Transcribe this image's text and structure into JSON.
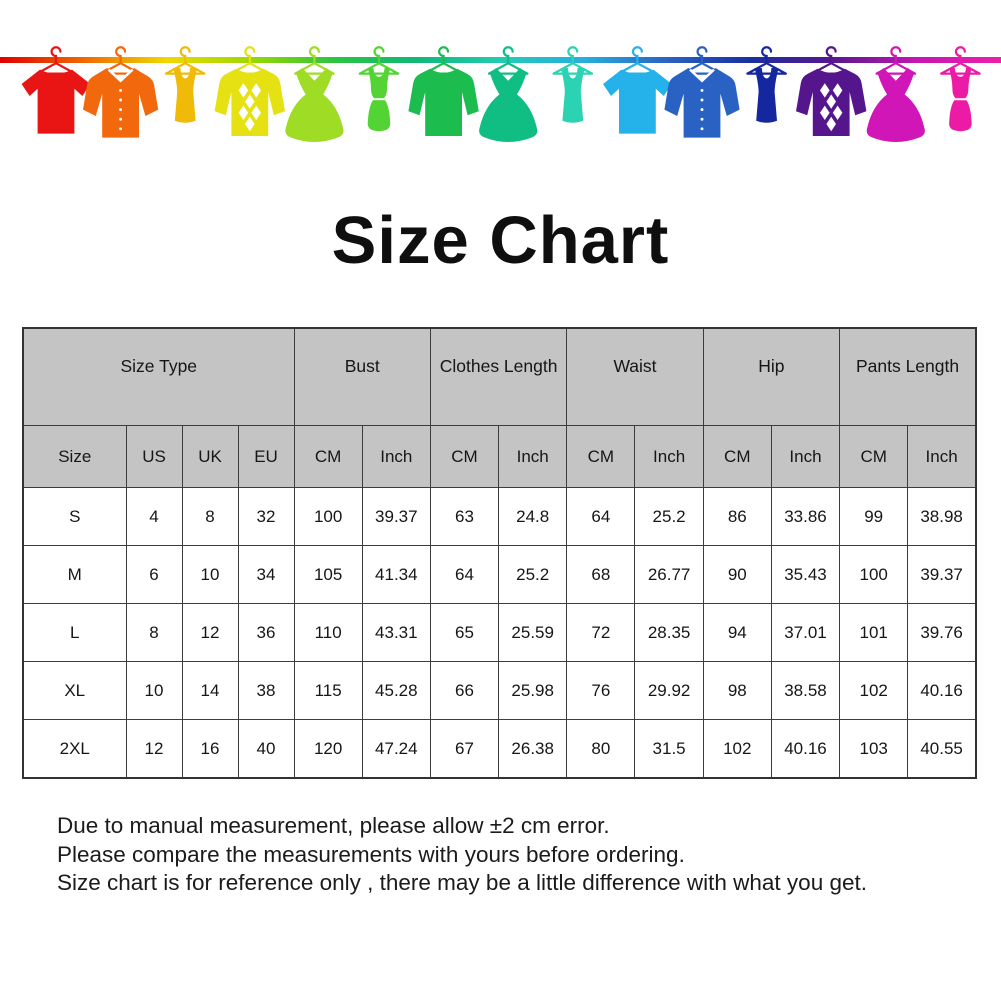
{
  "title": "Size Chart",
  "banner": {
    "line_gradient": [
      "#e00000",
      "#f06800",
      "#f0d800",
      "#9cd800",
      "#2cc440",
      "#10b878",
      "#22ccb4",
      "#28aede",
      "#2a62c4",
      "#1a2fa0",
      "#5a1692",
      "#c516b4",
      "#ee20a8"
    ],
    "items": [
      {
        "icon": "tshirt-icon",
        "color": "#e91414"
      },
      {
        "icon": "shirt-icon",
        "color": "#f2680d"
      },
      {
        "icon": "tank-top-icon",
        "color": "#f0bb08"
      },
      {
        "icon": "argyle-sweater-icon",
        "color": "#e6e112"
      },
      {
        "icon": "dress-icon",
        "color": "#9edc26"
      },
      {
        "icon": "cami-dress-icon",
        "color": "#54d434"
      },
      {
        "icon": "sweater-icon",
        "color": "#1cbd4e"
      },
      {
        "icon": "dress-icon",
        "color": "#10bd82"
      },
      {
        "icon": "tank-top-icon",
        "color": "#2bd3b2"
      },
      {
        "icon": "tshirt-icon",
        "color": "#25b2ea"
      },
      {
        "icon": "shirt-icon",
        "color": "#2a62c4"
      },
      {
        "icon": "tank-top-icon",
        "color": "#15279e"
      },
      {
        "icon": "argyle-sweater-icon",
        "color": "#55158d"
      },
      {
        "icon": "dress-icon",
        "color": "#d016b6"
      },
      {
        "icon": "cami-dress-icon",
        "color": "#ec1ba6"
      }
    ]
  },
  "size_table": {
    "header_background": "#c4c4c4",
    "border_color": "#3c3c3c",
    "column_groups": [
      {
        "label": "Size Type",
        "span": 4
      },
      {
        "label": "Bust",
        "span": 2
      },
      {
        "label": "Clothes Length",
        "span": 2
      },
      {
        "label": "Waist",
        "span": 2
      },
      {
        "label": "Hip",
        "span": 2
      },
      {
        "label": "Pants Length",
        "span": 2
      }
    ],
    "sub_columns": [
      "Size",
      "US",
      "UK",
      "EU",
      "CM",
      "Inch",
      "CM",
      "Inch",
      "CM",
      "Inch",
      "CM",
      "Inch",
      "CM",
      "Inch"
    ],
    "rows": [
      [
        "S",
        "4",
        "8",
        "32",
        "100",
        "39.37",
        "63",
        "24.8",
        "64",
        "25.2",
        "86",
        "33.86",
        "99",
        "38.98"
      ],
      [
        "M",
        "6",
        "10",
        "34",
        "105",
        "41.34",
        "64",
        "25.2",
        "68",
        "26.77",
        "90",
        "35.43",
        "100",
        "39.37"
      ],
      [
        "L",
        "8",
        "12",
        "36",
        "110",
        "43.31",
        "65",
        "25.59",
        "72",
        "28.35",
        "94",
        "37.01",
        "101",
        "39.76"
      ],
      [
        "XL",
        "10",
        "14",
        "38",
        "115",
        "45.28",
        "66",
        "25.98",
        "76",
        "29.92",
        "98",
        "38.58",
        "102",
        "40.16"
      ],
      [
        "2XL",
        "12",
        "16",
        "40",
        "120",
        "47.24",
        "67",
        "26.38",
        "80",
        "31.5",
        "102",
        "40.16",
        "103",
        "40.55"
      ]
    ]
  },
  "notes": [
    "Due to manual measurement, please allow ±2 cm error.",
    "Please compare the measurements with yours before ordering.",
    "Size chart is for reference only , there may be a little difference with what you get."
  ]
}
